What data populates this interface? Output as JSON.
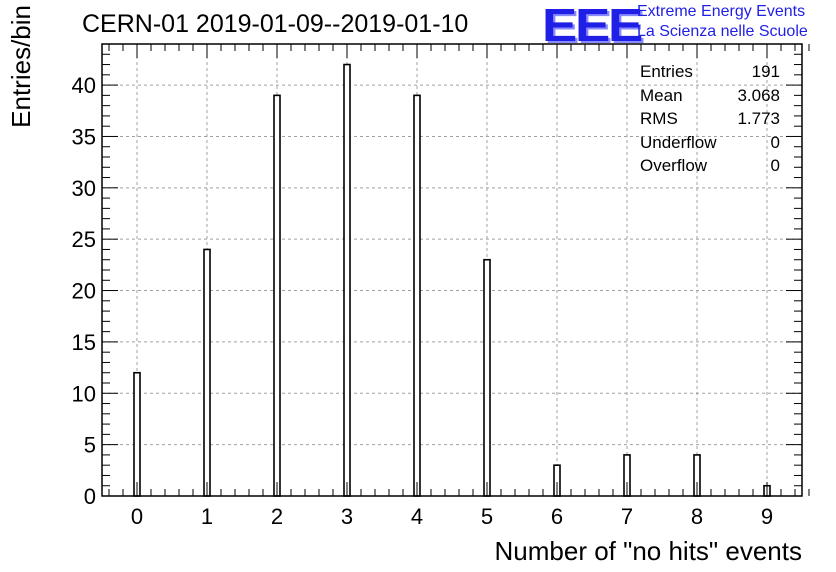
{
  "title": "CERN-01 2019-01-09--2019-01-10",
  "logo": {
    "mark": "EEE",
    "line1": "Extreme Energy Events",
    "line2": "La Scienza nelle Scuole",
    "color": "#1f1fe6"
  },
  "stats": [
    {
      "label": "Entries",
      "value": "191"
    },
    {
      "label": "Mean",
      "value": "3.068"
    },
    {
      "label": "RMS",
      "value": "1.773"
    },
    {
      "label": "Underflow",
      "value": "0"
    },
    {
      "label": "Overflow",
      "value": "0"
    }
  ],
  "chart_data": {
    "type": "bar",
    "categories": [
      "0",
      "1",
      "2",
      "3",
      "4",
      "5",
      "6",
      "7",
      "8",
      "9"
    ],
    "x": [
      0,
      1,
      2,
      3,
      4,
      5,
      6,
      7,
      8,
      9
    ],
    "values": [
      12,
      24,
      39,
      42,
      39,
      23,
      3,
      4,
      4,
      1
    ],
    "xlabel": "Number of \"no hits\" events",
    "ylabel": "Entries/bin",
    "xlim": [
      -0.5,
      9.5
    ],
    "ylim": [
      0,
      44
    ],
    "yticks": [
      0,
      5,
      10,
      15,
      20,
      25,
      30,
      35,
      40
    ],
    "ytick_labels": [
      "0",
      "5",
      "10",
      "15",
      "20",
      "25",
      "30",
      "35",
      "40"
    ],
    "grid": true,
    "bar_color": "#ffffff",
    "edge_color": "#000000"
  }
}
